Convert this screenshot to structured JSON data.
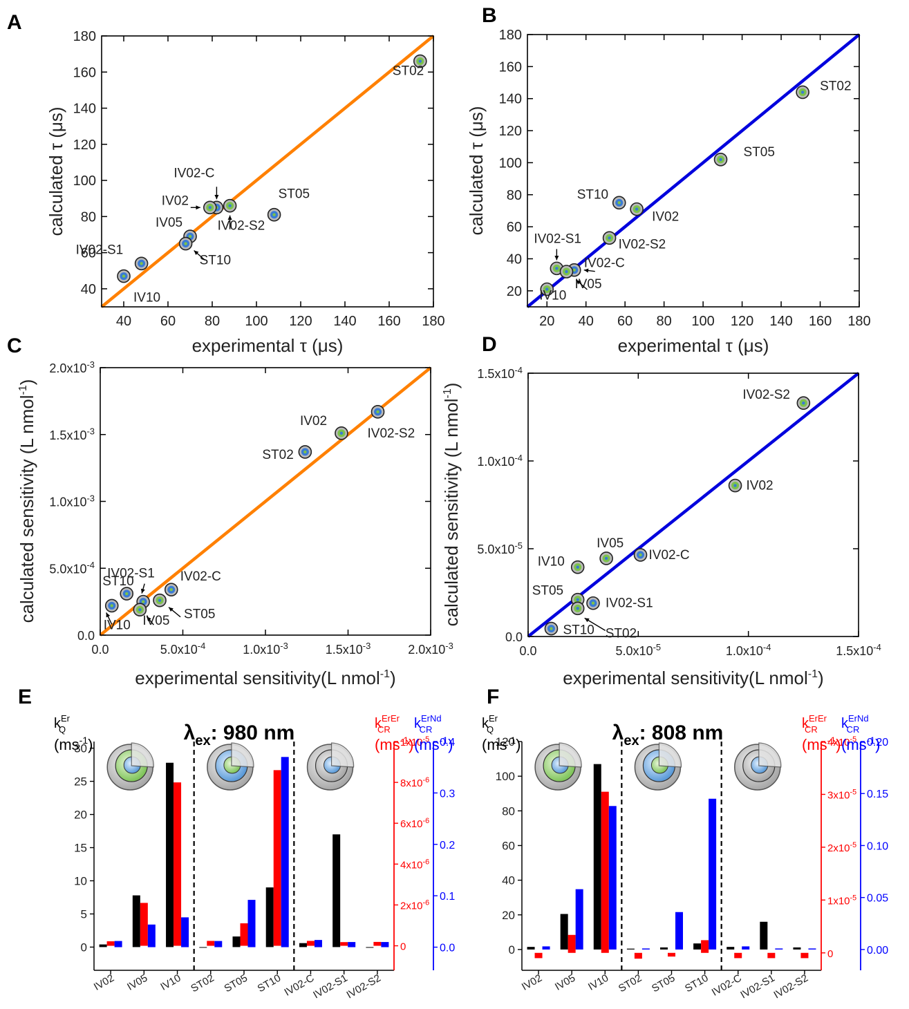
{
  "chart_data": [
    {
      "id": "A",
      "panel_label": "A",
      "type": "scatter",
      "xlabel": "experimental τ (μs)",
      "ylabel": "calculated τ (μs)",
      "xlim": [
        30,
        180
      ],
      "ylim": [
        30,
        180
      ],
      "xticks": [
        "40",
        "60",
        "80",
        "100",
        "120",
        "140",
        "160",
        "180"
      ],
      "yticks": [
        "40",
        "60",
        "80",
        "100",
        "120",
        "140",
        "160",
        "180"
      ],
      "fit_line_color": "#ff8000",
      "points": [
        {
          "label": "ST02",
          "x": 174,
          "y": 166,
          "color": "#7cc24c"
        },
        {
          "label": "ST05",
          "x": 108,
          "y": 81,
          "color": "#3a7bd5"
        },
        {
          "label": "IV02-C",
          "x": 82,
          "y": 85,
          "color": "#3a7bd5"
        },
        {
          "label": "IV02",
          "x": 79,
          "y": 85,
          "color": "#7cc24c"
        },
        {
          "label": "IV02-S2",
          "x": 88,
          "y": 86,
          "color": "#7cc24c"
        },
        {
          "label": "IV05",
          "x": 70,
          "y": 69,
          "color": "#3a7bd5"
        },
        {
          "label": "ST10",
          "x": 68,
          "y": 65,
          "color": "#3a7bd5"
        },
        {
          "label": "IV02-S1",
          "x": 48,
          "y": 54,
          "color": "#3a7bd5"
        },
        {
          "label": "IV10",
          "x": 40,
          "y": 47,
          "color": "#3a7bd5"
        }
      ]
    },
    {
      "id": "B",
      "panel_label": "B",
      "type": "scatter",
      "xlabel": "experimental τ (μs)",
      "ylabel": "calculated τ (μs)",
      "xlim": [
        10,
        180
      ],
      "ylim": [
        10,
        180
      ],
      "xticks": [
        "20",
        "40",
        "60",
        "80",
        "100",
        "120",
        "140",
        "160",
        "180"
      ],
      "yticks": [
        "20",
        "40",
        "60",
        "80",
        "100",
        "120",
        "140",
        "160",
        "180"
      ],
      "fit_line_color": "#0000dd",
      "points": [
        {
          "label": "ST02",
          "x": 151,
          "y": 144,
          "color": "#7cc24c"
        },
        {
          "label": "ST05",
          "x": 109,
          "y": 102,
          "color": "#7cc24c"
        },
        {
          "label": "ST10",
          "x": 57,
          "y": 75,
          "color": "#3a7bd5"
        },
        {
          "label": "IV02",
          "x": 66,
          "y": 71,
          "color": "#7cc24c"
        },
        {
          "label": "IV02-S2",
          "x": 52,
          "y": 53,
          "color": "#7cc24c"
        },
        {
          "label": "IV02-S1",
          "x": 25,
          "y": 34,
          "color": "#7cc24c"
        },
        {
          "label": "IV02-C",
          "x": 34,
          "y": 33,
          "color": "#3a7bd5"
        },
        {
          "label": "IV05",
          "x": 30,
          "y": 32,
          "color": "#7cc24c"
        },
        {
          "label": "IV10",
          "x": 20,
          "y": 21,
          "color": "#7cc24c"
        }
      ]
    },
    {
      "id": "C",
      "panel_label": "C",
      "type": "scatter",
      "xlabel": "experimental sensitivity(L nmol",
      "xlabel_sup": "-1",
      "xlabel_end": ")",
      "ylabel": "calculated sensitivity (L nmol",
      "ylabel_sup": "-1",
      "ylabel_end": ")",
      "xlim": [
        0,
        0.002
      ],
      "ylim": [
        0,
        0.002
      ],
      "xticks": [
        "0.0",
        "5.0x10-4",
        "1.0x10-3",
        "1.5x10-3",
        "2.0x10-3"
      ],
      "yticks": [
        "0.0",
        "5.0x10-4",
        "1.0x10-3",
        "1.5x10-3",
        "2.0x10-3"
      ],
      "fit_line_color": "#ff8000",
      "points": [
        {
          "label": "IV02-S2",
          "x": 0.00168,
          "y": 0.00167,
          "color": "#3a7bd5"
        },
        {
          "label": "IV02",
          "x": 0.00146,
          "y": 0.00151,
          "color": "#7cc24c"
        },
        {
          "label": "ST02",
          "x": 0.00124,
          "y": 0.00137,
          "color": "#3a7bd5"
        },
        {
          "label": "IV02-C",
          "x": 0.00043,
          "y": 0.00034,
          "color": "#3a7bd5"
        },
        {
          "label": "IV02-S1",
          "x": 0.00026,
          "y": 0.00025,
          "color": "#3a7bd5"
        },
        {
          "label": "ST10",
          "x": 0.00016,
          "y": 0.00031,
          "color": "#3a7bd5"
        },
        {
          "label": "ST05",
          "x": 0.00036,
          "y": 0.00026,
          "color": "#7cc24c"
        },
        {
          "label": "IV05",
          "x": 0.00024,
          "y": 0.00019,
          "color": "#7cc24c"
        },
        {
          "label": "IV10",
          "x": 7e-05,
          "y": 0.00022,
          "color": "#3a7bd5"
        }
      ]
    },
    {
      "id": "D",
      "panel_label": "D",
      "type": "scatter",
      "xlabel": "experimental sensitivity(L nmol",
      "xlabel_sup": "-1",
      "xlabel_end": ")",
      "ylabel": "calculated sensitivity (L nmol",
      "ylabel_sup": "-1",
      "ylabel_end": ")",
      "xlim": [
        0,
        0.00015
      ],
      "ylim": [
        0,
        0.00015
      ],
      "xticks": [
        "0.0",
        "5.0x10-5",
        "1.0x10-4",
        "1.5x10-4"
      ],
      "yticks": [
        "0.0",
        "5.0x10-5",
        "1.0x10-4",
        "1.5x10-4"
      ],
      "fit_line_color": "#0000dd",
      "points": [
        {
          "label": "IV02-S2",
          "x": 0.000125,
          "y": 0.000133,
          "color": "#7cc24c"
        },
        {
          "label": "IV02",
          "x": 9.4e-05,
          "y": 8.6e-05,
          "color": "#7cc24c"
        },
        {
          "label": "IV02-C",
          "x": 5.1e-05,
          "y": 4.65e-05,
          "color": "#3a7bd5"
        },
        {
          "label": "IV05",
          "x": 3.55e-05,
          "y": 4.45e-05,
          "color": "#7cc24c"
        },
        {
          "label": "IV10",
          "x": 2.25e-05,
          "y": 3.95e-05,
          "color": "#7cc24c"
        },
        {
          "label": "ST05",
          "x": 2.25e-05,
          "y": 2.1e-05,
          "color": "#7cc24c"
        },
        {
          "label": "IV02-S1",
          "x": 2.95e-05,
          "y": 1.9e-05,
          "color": "#3a7bd5"
        },
        {
          "label": "ST02",
          "x": 2.25e-05,
          "y": 1.6e-05,
          "color": "#7cc24c"
        },
        {
          "label": "ST10",
          "x": 1.05e-05,
          "y": 4.5e-06,
          "color": "#3a7bd5"
        }
      ]
    },
    {
      "id": "E",
      "panel_label": "E",
      "type": "bar",
      "title_main": "λ",
      "title_sub": "ex",
      "title_rest": ": 980 nm",
      "categories": [
        "IV02",
        "IV05",
        "IV10",
        "ST02",
        "ST05",
        "ST10",
        "IV02-C",
        "IV02-S1",
        "IV02-S2"
      ],
      "left_axis": {
        "label_k": "k",
        "label_sup": "Er",
        "label_sub": "Q",
        "unit": "(ms",
        "unit_sup": "-1",
        "unit_end": ")",
        "lim": [
          -3.5,
          31
        ],
        "ticks": [
          "0",
          "5",
          "10",
          "15",
          "20",
          "25",
          "30"
        ],
        "color": "#000000"
      },
      "red_axis": {
        "label_k": "k",
        "label_sup": "ErEr",
        "label_sub": "CR",
        "unit": "(ms",
        "unit_sup": "-1",
        "unit_end": ")",
        "lim": [
          -1.2e-06,
          1e-05
        ],
        "ticks": [
          "0",
          "2x10-6",
          "4x10-6",
          "6x10-6",
          "8x10-6",
          "1x10-5"
        ],
        "color": "#ff0000"
      },
      "blue_axis": {
        "label_k": "k",
        "label_sup": "ErNd",
        "label_sub": "CR",
        "unit": "(ms",
        "unit_sup": "-1",
        "unit_end": ")",
        "lim": [
          -0.045,
          0.4
        ],
        "ticks": [
          "0.0",
          "0.1",
          "0.2",
          "0.3",
          "0.4"
        ],
        "color": "#0000ff"
      },
      "series": [
        {
          "axis": "left",
          "color": "#000000",
          "values": [
            0.4,
            7.8,
            27.8,
            -0.05,
            1.6,
            9.0,
            0.6,
            17.0,
            -0.05
          ]
        },
        {
          "axis": "red",
          "color": "#ff0000",
          "values": [
            2.2e-07,
            2.1e-06,
            8e-06,
            2.4e-07,
            1.1e-06,
            8.6e-06,
            2.4e-07,
            1.8e-07,
            1.9e-07
          ]
        },
        {
          "axis": "blue",
          "color": "#0000ff",
          "values": [
            0.012,
            0.044,
            0.058,
            0.012,
            0.092,
            0.37,
            0.014,
            0.01,
            0.01
          ]
        }
      ]
    },
    {
      "id": "F",
      "panel_label": "F",
      "type": "bar",
      "title_main": "λ",
      "title_sub": "ex",
      "title_rest": ": 808 nm",
      "categories": [
        "IV02",
        "IV05",
        "IV10",
        "ST02",
        "ST05",
        "ST10",
        "IV02-C",
        "IV02-S1",
        "IV02-S2"
      ],
      "left_axis": {
        "label_k": "k",
        "label_sup": "Er",
        "label_sub": "Q",
        "unit": "(ms",
        "unit_sup": "-1",
        "unit_end": ")",
        "lim": [
          -12,
          120
        ],
        "ticks": [
          "0",
          "20",
          "40",
          "60",
          "80",
          "100",
          "120"
        ],
        "color": "#000000"
      },
      "red_axis": {
        "label_k": "k",
        "label_sup": "ErEr",
        "label_sub": "CR",
        "unit": "(ms",
        "unit_sup": "-1",
        "unit_end": ")",
        "lim": [
          -3.3e-06,
          4e-05
        ],
        "ticks": [
          "0",
          "1x10-5",
          "2x10-5",
          "3x10-5",
          "4x10-5"
        ],
        "color": "#ff0000"
      },
      "blue_axis": {
        "label_k": "k",
        "label_sup": "ErNd",
        "label_sub": "CR",
        "unit": "(ms",
        "unit_sup": "-1",
        "unit_end": ")",
        "lim": [
          -0.02,
          0.2
        ],
        "ticks": [
          "0.00",
          "0.05",
          "0.10",
          "0.15",
          "0.20"
        ],
        "color": "#0000ff"
      },
      "series": [
        {
          "axis": "left",
          "color": "#000000",
          "values": [
            1.5,
            20.5,
            107,
            0.5,
            1.2,
            3.5,
            1.5,
            16,
            1.2
          ]
        },
        {
          "axis": "red",
          "color": "#ff0000",
          "values": [
            -1e-06,
            3.4e-06,
            3.05e-05,
            -1.1e-06,
            -7e-07,
            2.4e-06,
            -1e-06,
            -1e-06,
            -1e-06
          ]
        },
        {
          "axis": "blue",
          "color": "#0000ff",
          "values": [
            0.003,
            0.058,
            0.138,
            0.001,
            0.036,
            0.145,
            0.003,
            0.001,
            0.001
          ]
        }
      ]
    }
  ]
}
